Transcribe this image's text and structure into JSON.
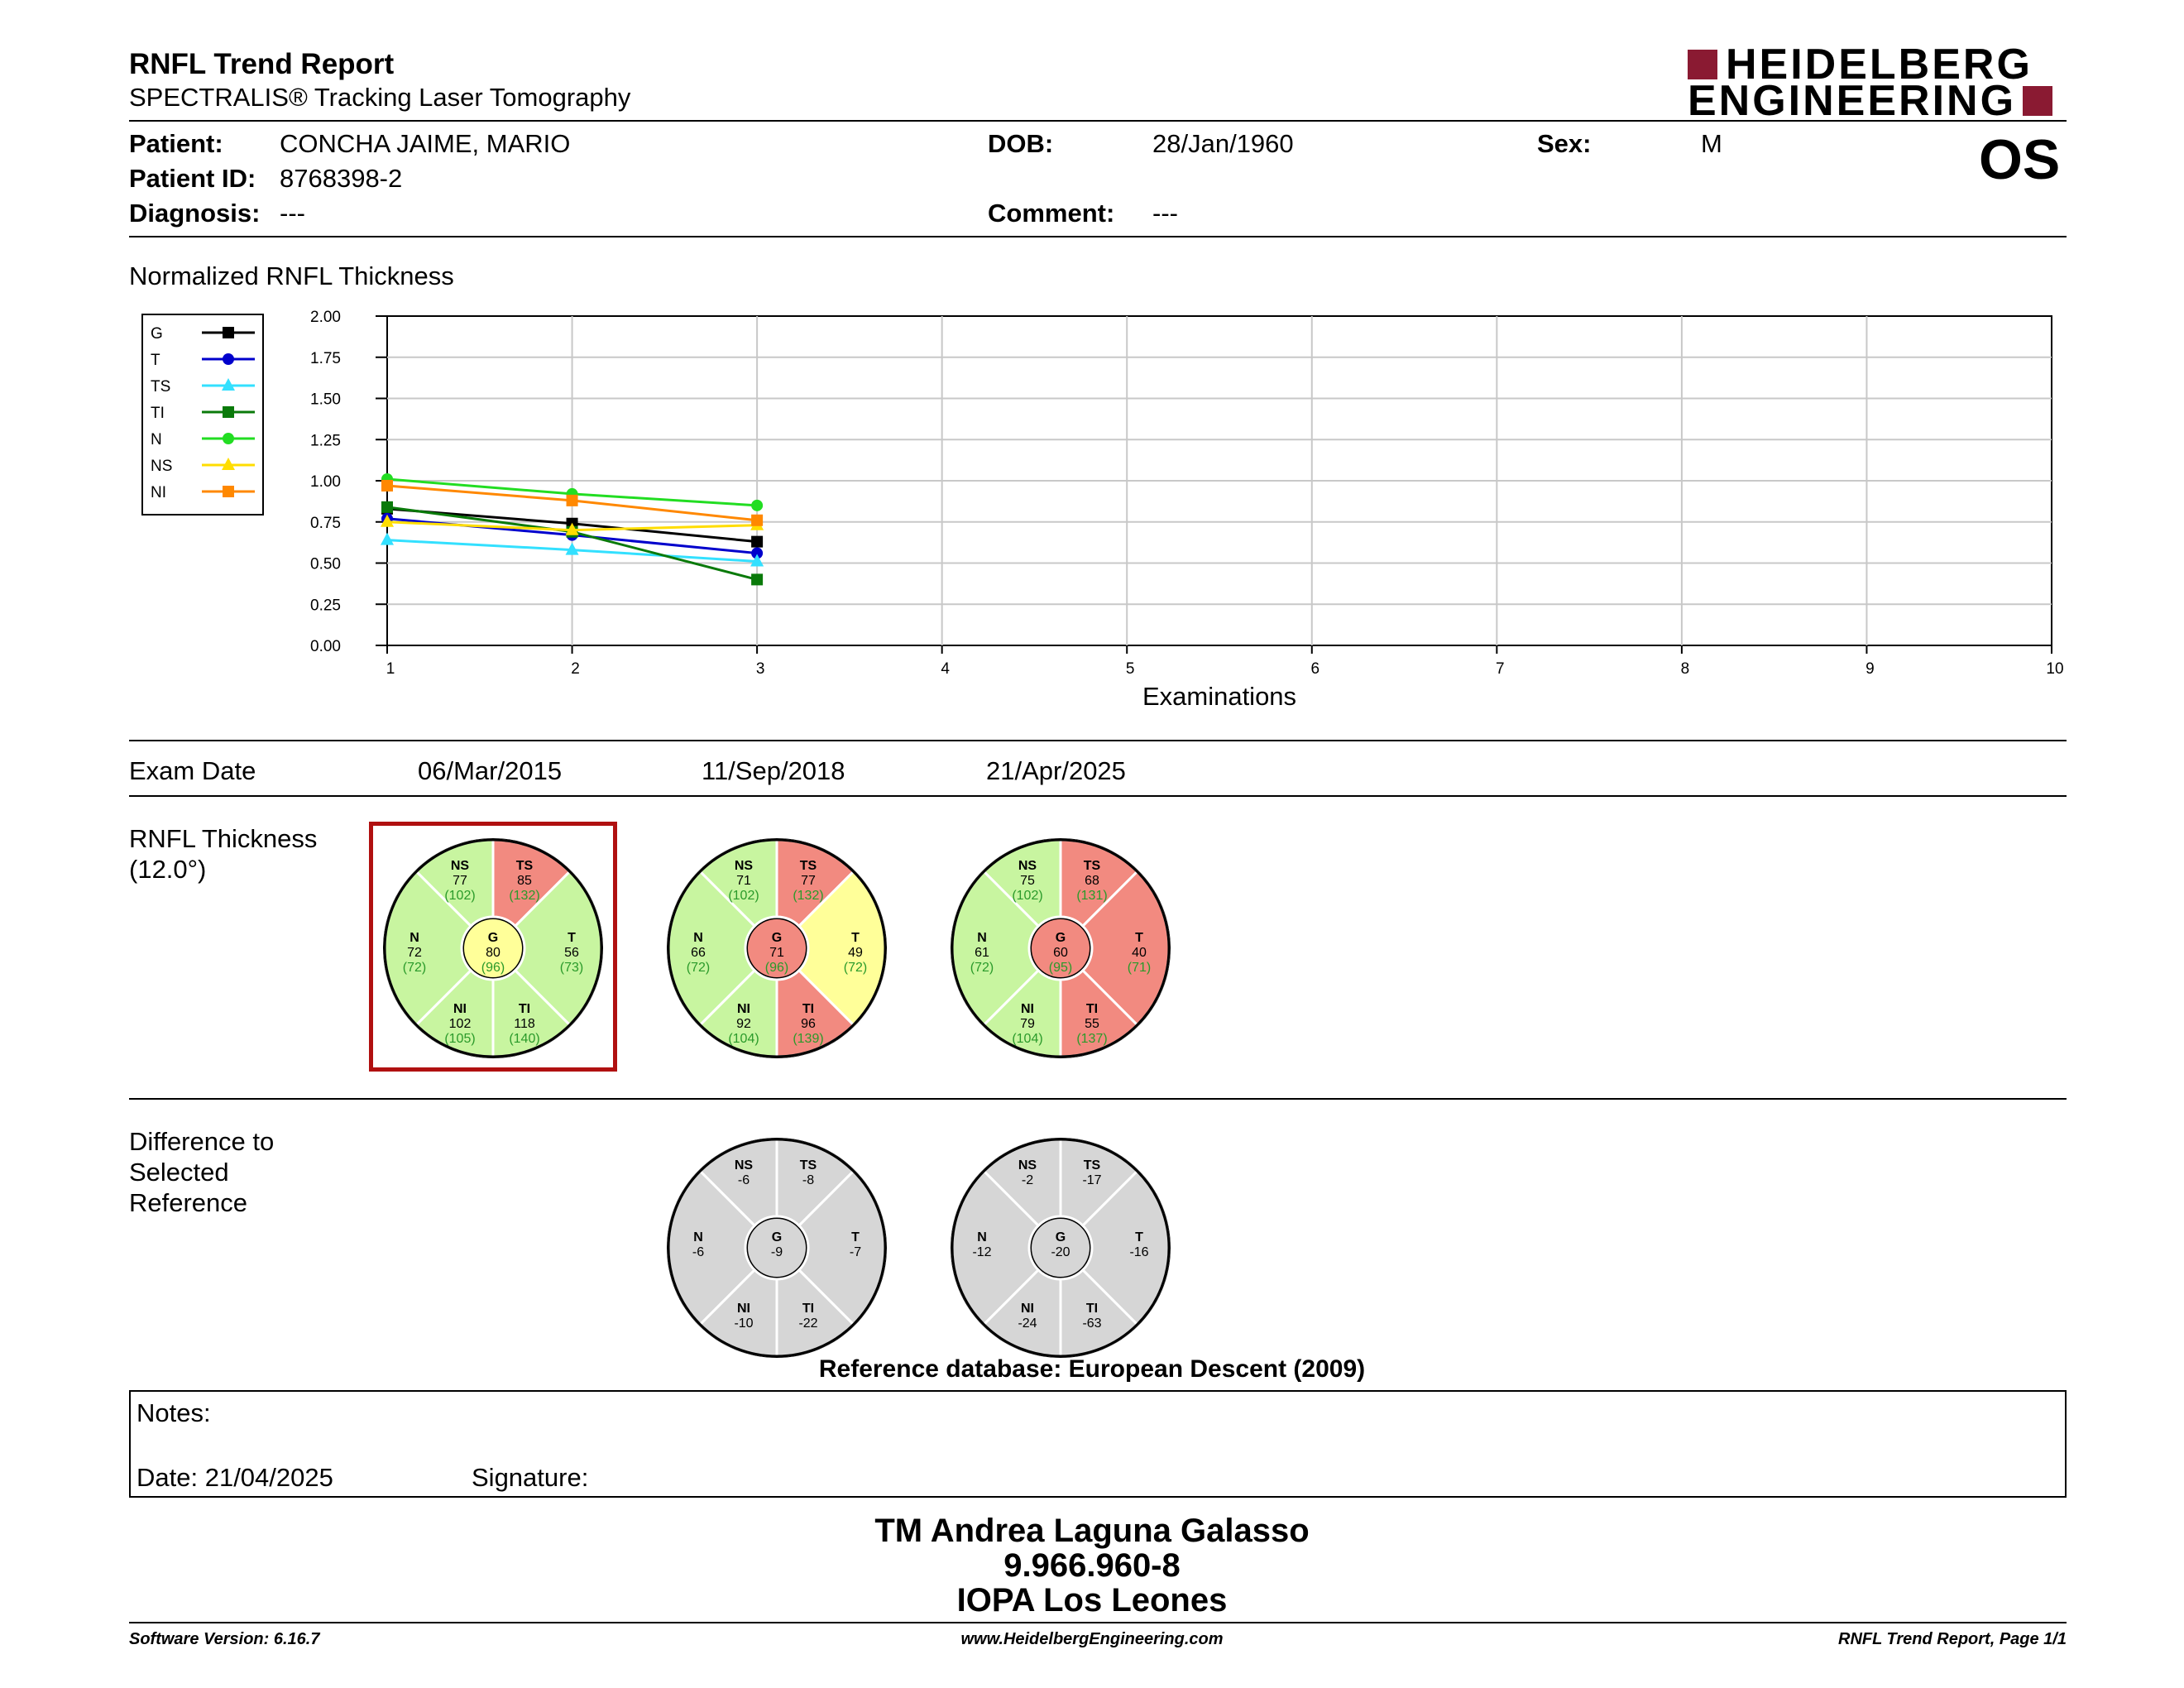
{
  "header": {
    "title": "RNFL Trend Report",
    "subtitle": "SPECTRALIS® Tracking Laser Tomography",
    "logo_line1": "HEIDELBERG",
    "logo_line2": "ENGINEERING",
    "eye": "OS"
  },
  "patient": {
    "patient_label": "Patient:",
    "patient_value": "CONCHA JAIME, MARIO",
    "id_label": "Patient ID:",
    "id_value": "8768398-2",
    "diagnosis_label": "Diagnosis:",
    "diagnosis_value": "---",
    "dob_label": "DOB:",
    "dob_value": "28/Jan/1960",
    "comment_label": "Comment:",
    "comment_value": "---",
    "sex_label": "Sex:",
    "sex_value": "M"
  },
  "colors": {
    "G": "#000000",
    "T": "#0000cc",
    "TS": "#33e0ff",
    "TI": "#0a7a0a",
    "N": "#22dd22",
    "NS": "#ffdd00",
    "NI": "#ff8800",
    "normal": "#c8f5a0",
    "borderline": "#ffff99",
    "outside": "#f28a80",
    "diff": "#d6d6d6",
    "selected_frame": "#b01010",
    "logo": "#8a1a32"
  },
  "chart_data": {
    "type": "line",
    "title": "Normalized RNFL Thickness",
    "xlabel": "Examinations",
    "ylabel": "",
    "xlim": [
      1,
      10
    ],
    "ylim": [
      0,
      2
    ],
    "x_ticks": [
      "1",
      "2",
      "3",
      "4",
      "5",
      "6",
      "7",
      "8",
      "9",
      "10"
    ],
    "y_ticks": [
      "0.00",
      "0.25",
      "0.50",
      "0.75",
      "1.00",
      "1.25",
      "1.50",
      "1.75",
      "2.00"
    ],
    "grid": true,
    "legend_position": "left",
    "x": [
      1,
      2,
      3
    ],
    "series": [
      {
        "name": "G",
        "marker": "square",
        "values": [
          0.83,
          0.74,
          0.63
        ]
      },
      {
        "name": "T",
        "marker": "circle",
        "values": [
          0.77,
          0.67,
          0.56
        ]
      },
      {
        "name": "TS",
        "marker": "triangle",
        "values": [
          0.64,
          0.58,
          0.51
        ]
      },
      {
        "name": "TI",
        "marker": "square",
        "values": [
          0.84,
          0.69,
          0.4
        ]
      },
      {
        "name": "N",
        "marker": "circle",
        "values": [
          1.01,
          0.92,
          0.85
        ]
      },
      {
        "name": "NS",
        "marker": "triangle",
        "values": [
          0.75,
          0.7,
          0.73
        ]
      },
      {
        "name": "NI",
        "marker": "square",
        "values": [
          0.97,
          0.88,
          0.76
        ]
      }
    ]
  },
  "exams": {
    "label": "Exam Date",
    "dates": [
      "06/Mar/2015",
      "11/Sep/2018",
      "21/Apr/2025"
    ]
  },
  "rnfl": {
    "label_line1": "RNFL Thickness",
    "label_line2": "(12.0°)",
    "selected_index": 0,
    "circles": [
      {
        "G": {
          "v": "80",
          "n": "(96)",
          "c": "borderline"
        },
        "NS": {
          "v": "77",
          "n": "(102)",
          "c": "normal"
        },
        "TS": {
          "v": "85",
          "n": "(132)",
          "c": "outside"
        },
        "N": {
          "v": "72",
          "n": "(72)",
          "c": "normal"
        },
        "T": {
          "v": "56",
          "n": "(73)",
          "c": "normal"
        },
        "NI": {
          "v": "102",
          "n": "(105)",
          "c": "normal"
        },
        "TI": {
          "v": "118",
          "n": "(140)",
          "c": "normal"
        }
      },
      {
        "G": {
          "v": "71",
          "n": "(96)",
          "c": "outside"
        },
        "NS": {
          "v": "71",
          "n": "(102)",
          "c": "normal"
        },
        "TS": {
          "v": "77",
          "n": "(132)",
          "c": "outside"
        },
        "N": {
          "v": "66",
          "n": "(72)",
          "c": "normal"
        },
        "T": {
          "v": "49",
          "n": "(72)",
          "c": "borderline"
        },
        "NI": {
          "v": "92",
          "n": "(104)",
          "c": "normal"
        },
        "TI": {
          "v": "96",
          "n": "(139)",
          "c": "outside"
        }
      },
      {
        "G": {
          "v": "60",
          "n": "(95)",
          "c": "outside"
        },
        "NS": {
          "v": "75",
          "n": "(102)",
          "c": "normal"
        },
        "TS": {
          "v": "68",
          "n": "(131)",
          "c": "outside"
        },
        "N": {
          "v": "61",
          "n": "(72)",
          "c": "normal"
        },
        "T": {
          "v": "40",
          "n": "(71)",
          "c": "outside"
        },
        "NI": {
          "v": "79",
          "n": "(104)",
          "c": "normal"
        },
        "TI": {
          "v": "55",
          "n": "(137)",
          "c": "outside"
        }
      }
    ]
  },
  "difference": {
    "label_line1": "Difference to",
    "label_line2": "Selected",
    "label_line3": "Reference",
    "circles": [
      {
        "G": "-9",
        "NS": "-6",
        "TS": "-8",
        "N": "-6",
        "T": "-7",
        "NI": "-10",
        "TI": "-22"
      },
      {
        "G": "-20",
        "NS": "-2",
        "TS": "-17",
        "N": "-12",
        "T": "-16",
        "NI": "-24",
        "TI": "-63"
      }
    ],
    "reference_db": "Reference database: European Descent (2009)"
  },
  "notes": {
    "label": "Notes:",
    "date": "Date: 21/04/2025",
    "signature": "Signature:"
  },
  "signer": {
    "name": "TM Andrea Laguna Galasso",
    "id": "9.966.960-8",
    "institution": "IOPA Los Leones"
  },
  "footer": {
    "software": "Software Version: 6.16.7",
    "website": "www.HeidelbergEngineering.com",
    "page": "RNFL Trend Report, Page 1/1"
  }
}
